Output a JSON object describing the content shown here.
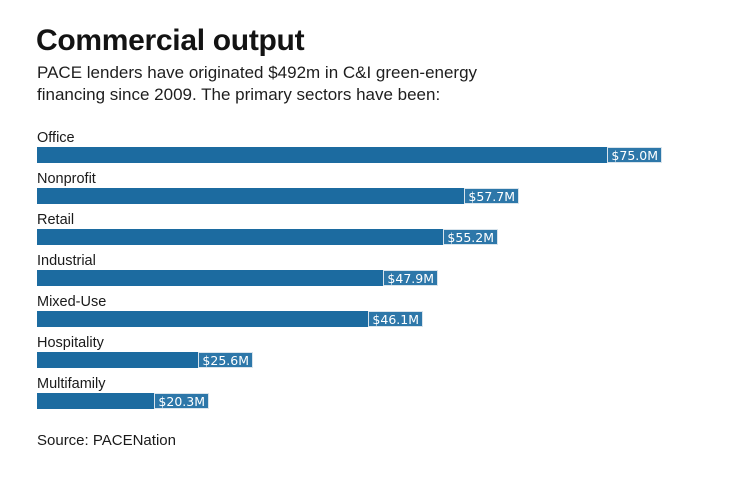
{
  "header": {
    "title": "Commercial output",
    "subtitle_lines": [
      "PACE lenders have originated $492m in C&I green-energy",
      "financing since 2009. The primary sectors have been:"
    ]
  },
  "chart_data": {
    "type": "bar",
    "orientation": "horizontal",
    "title": "Commercial output",
    "categories": [
      "Office",
      "Nonprofit",
      "Retail",
      "Industrial",
      "Mixed-Use",
      "Hospitality",
      "Multifamily"
    ],
    "values": [
      75.0,
      57.7,
      55.2,
      47.9,
      46.1,
      25.6,
      20.3
    ],
    "value_labels": [
      "$75.0M",
      "$57.7M",
      "$55.2M",
      "$47.9M",
      "$46.1M",
      "$25.6M",
      "$20.3M"
    ],
    "unit": "$M",
    "xlim": [
      0,
      75
    ],
    "grid": false,
    "legend": false,
    "bar_color": "#1c6ba0",
    "value_box_color": "#2d77a9",
    "value_text_color": "#ffffff"
  },
  "source": {
    "label": "Source: PACENation"
  }
}
